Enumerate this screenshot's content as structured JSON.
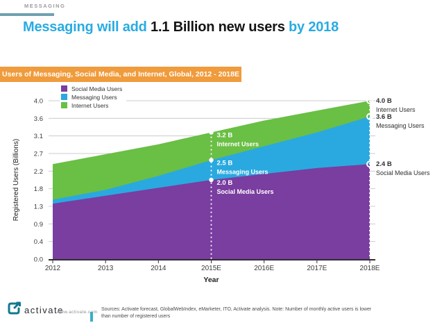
{
  "header": {
    "kicker": "MESSAGING",
    "kicker_bar_color": "#6fa0b0",
    "title_part1": "Messaging will add ",
    "title_part2": "1.1 Billion new users",
    "title_part3": " by 2018",
    "accent_color": "#29abe2"
  },
  "banner": {
    "text": "Users of Messaging, Social Media, and Internet, Global, 2012 - 2018E",
    "bg": "#f09b3c",
    "text_color": "#ffffff"
  },
  "chart_data": {
    "type": "area",
    "title": "Users of Messaging, Social Media, and Internet, Global, 2012 - 2018E",
    "overlaid": true,
    "categories": [
      "2012",
      "2013",
      "2014",
      "2015E",
      "2016E",
      "2017E",
      "2018E"
    ],
    "series": [
      {
        "name": "Social Media Users",
        "color": "#7a3da0",
        "values": [
          1.4,
          1.6,
          1.8,
          2.0,
          2.15,
          2.3,
          2.4
        ]
      },
      {
        "name": "Messaging Users",
        "color": "#2aa9e0",
        "values": [
          1.5,
          1.75,
          2.1,
          2.5,
          2.85,
          3.2,
          3.6
        ]
      },
      {
        "name": "Internet Users",
        "color": "#6abf45",
        "values": [
          2.4,
          2.65,
          2.9,
          3.2,
          3.5,
          3.75,
          4.0
        ]
      }
    ],
    "xlabel": "Year",
    "ylabel": "Registered Users (Billions)",
    "ylim": [
      0,
      4
    ],
    "ytick_labels": [
      "0.0",
      "0.4",
      "0.9",
      "1.3",
      "1.8",
      "2.2",
      "2.7",
      "3.1",
      "3.6",
      "4.0"
    ],
    "grid": true,
    "grid_color": "#cccccc",
    "axis_color": "#2f2f2f",
    "legend_position": "top-left",
    "annotations": {
      "2015E": [
        {
          "value": 3.2,
          "value_label": "3.2 B",
          "label": "Internet Users"
        },
        {
          "value": 2.5,
          "value_label": "2.5 B",
          "label": "Messaging Users"
        },
        {
          "value": 2.0,
          "value_label": "2.0 B",
          "label": "Social Media Users"
        }
      ],
      "2018E": [
        {
          "value": 4.0,
          "value_label": "4.0 B",
          "label": "Internet Users"
        },
        {
          "value": 3.6,
          "value_label": "3.6 B",
          "label": "Messaging Users"
        },
        {
          "value": 2.4,
          "value_label": "2.4 B",
          "label": "Social Media Users"
        }
      ]
    }
  },
  "footer": {
    "logo_text": "activate",
    "website": "www.activate.com",
    "accent_color": "#35b0c5",
    "logo_color": "#11798c",
    "sources_line1": "Sources: Activate forecast, GlobalWebIndex, eMarketer, ITO, Activate analysis. Note: Number of monthly active users is lower",
    "sources_line2": "than number of registered users"
  }
}
